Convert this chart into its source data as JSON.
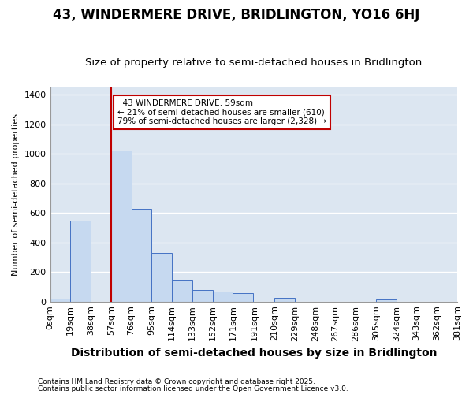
{
  "title": "43, WINDERMERE DRIVE, BRIDLINGTON, YO16 6HJ",
  "subtitle": "Size of property relative to semi-detached houses in Bridlington",
  "xlabel": "Distribution of semi-detached houses by size in Bridlington",
  "ylabel": "Number of semi-detached properties",
  "footnote1": "Contains HM Land Registry data © Crown copyright and database right 2025.",
  "footnote2": "Contains public sector information licensed under the Open Government Licence v3.0.",
  "annotation_line1": "43 WINDERMERE DRIVE: 59sqm",
  "annotation_line2": "← 21% of semi-detached houses are smaller (610)",
  "annotation_line3": "79% of semi-detached houses are larger (2,328) →",
  "bin_edges": [
    0,
    19,
    38,
    57,
    76,
    95,
    114,
    133,
    152,
    171,
    191,
    210,
    229,
    248,
    267,
    286,
    305,
    324,
    343,
    362,
    381
  ],
  "bar_heights": [
    20,
    550,
    0,
    1020,
    625,
    330,
    145,
    80,
    70,
    55,
    0,
    25,
    0,
    0,
    0,
    0,
    15,
    0,
    0,
    0
  ],
  "bar_color": "#c6d9f0",
  "bar_edge_color": "#4472c4",
  "red_line_x": 57,
  "ylim": [
    0,
    1450
  ],
  "yticks": [
    0,
    200,
    400,
    600,
    800,
    1000,
    1200,
    1400
  ],
  "xtick_labels": [
    "0sqm",
    "19sqm",
    "38sqm",
    "57sqm",
    "76sqm",
    "95sqm",
    "114sqm",
    "133sqm",
    "152sqm",
    "171sqm",
    "191sqm",
    "210sqm",
    "229sqm",
    "248sqm",
    "267sqm",
    "286sqm",
    "305sqm",
    "324sqm",
    "343sqm",
    "362sqm",
    "381sqm"
  ],
  "plot_bg_color": "#dce6f1",
  "fig_bg_color": "#ffffff",
  "grid_color": "#ffffff",
  "annotation_bg": "#ffffff",
  "annotation_edge": "#c00000",
  "red_line_color": "#c00000",
  "title_fontsize": 12,
  "subtitle_fontsize": 9.5,
  "xlabel_fontsize": 10,
  "ylabel_fontsize": 8,
  "tick_fontsize": 8,
  "footnote_fontsize": 6.5
}
